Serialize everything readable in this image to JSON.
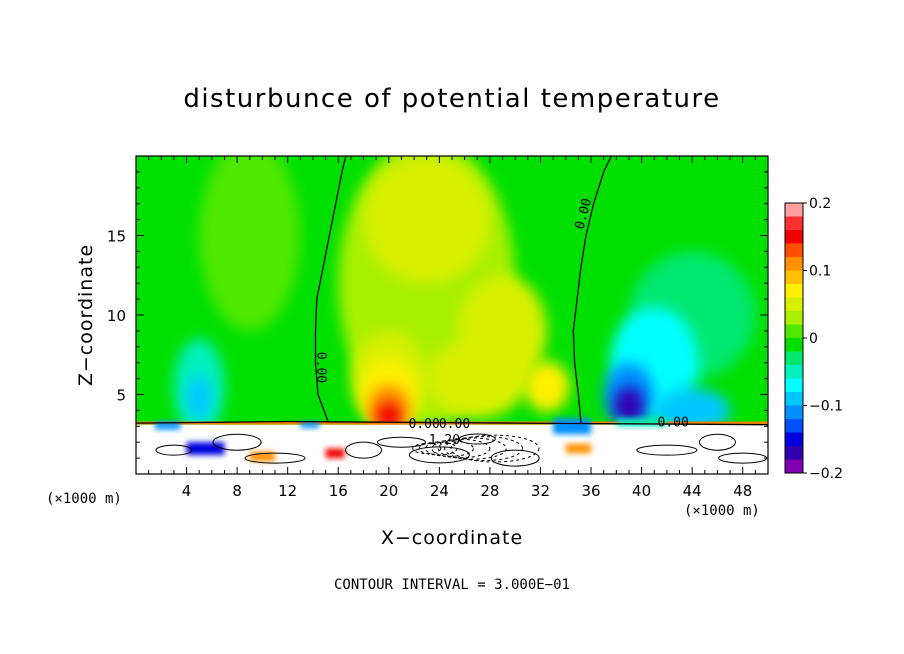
{
  "chart_data": {
    "type": "heatmap",
    "title": "disturbunce of potential temperature",
    "xlabel": "X−coordinate",
    "ylabel": "Z−coordinate",
    "x_unit": "(×1000 m)",
    "y_unit": "(×1000 m)",
    "xlim": [
      0,
      50
    ],
    "ylim": [
      0,
      20
    ],
    "x_ticks": [
      4,
      8,
      12,
      16,
      20,
      24,
      28,
      32,
      36,
      40,
      44,
      48
    ],
    "x_tick_labels": [
      "4",
      "8",
      "12",
      "16",
      "20",
      "24",
      "28",
      "32",
      "36",
      "40",
      "44",
      "48"
    ],
    "y_ticks": [
      5,
      10,
      15
    ],
    "y_tick_labels": [
      "5",
      "10",
      "15"
    ],
    "colorbar": {
      "range": [
        -0.2,
        0.2
      ],
      "tick_labels": [
        "0.2",
        "0.1",
        "0",
        "−0.1",
        "−0.2"
      ],
      "tick_values": [
        0.2,
        0.1,
        0,
        -0.1,
        -0.2
      ],
      "colors": [
        "#ffa0a0",
        "#ff3030",
        "#f00000",
        "#ff5000",
        "#ff9000",
        "#ffc000",
        "#fff000",
        "#d8f000",
        "#a8f000",
        "#50e800",
        "#00e000",
        "#00e870",
        "#00f0c0",
        "#00ffff",
        "#00c8ff",
        "#0090ff",
        "#0050ff",
        "#0000e0",
        "#3000b0",
        "#8000b0"
      ]
    },
    "contour_labels": [
      "0.00",
      "0.00",
      "0.00",
      "0.00",
      "0.00",
      "1.20"
    ],
    "annotation": "CONTOUR INTERVAL = 3.000E−01",
    "features": [
      {
        "type": "warm_max",
        "x": 20,
        "z": 3.6,
        "value": 0.16
      },
      {
        "type": "warm",
        "x": 28.5,
        "z": 9,
        "value": 0.05
      },
      {
        "type": "warm",
        "x": 32.5,
        "z": 5.5,
        "value": 0.08
      },
      {
        "type": "cold_min",
        "x": 39,
        "z": 4.5,
        "value": -0.16
      },
      {
        "type": "cold",
        "x": 5,
        "z": 5.5,
        "value": -0.06
      },
      {
        "type": "cold",
        "x": 44,
        "z": 10,
        "value": -0.05
      },
      {
        "type": "cold",
        "x": 44,
        "z": 4,
        "value": -0.08
      }
    ]
  }
}
